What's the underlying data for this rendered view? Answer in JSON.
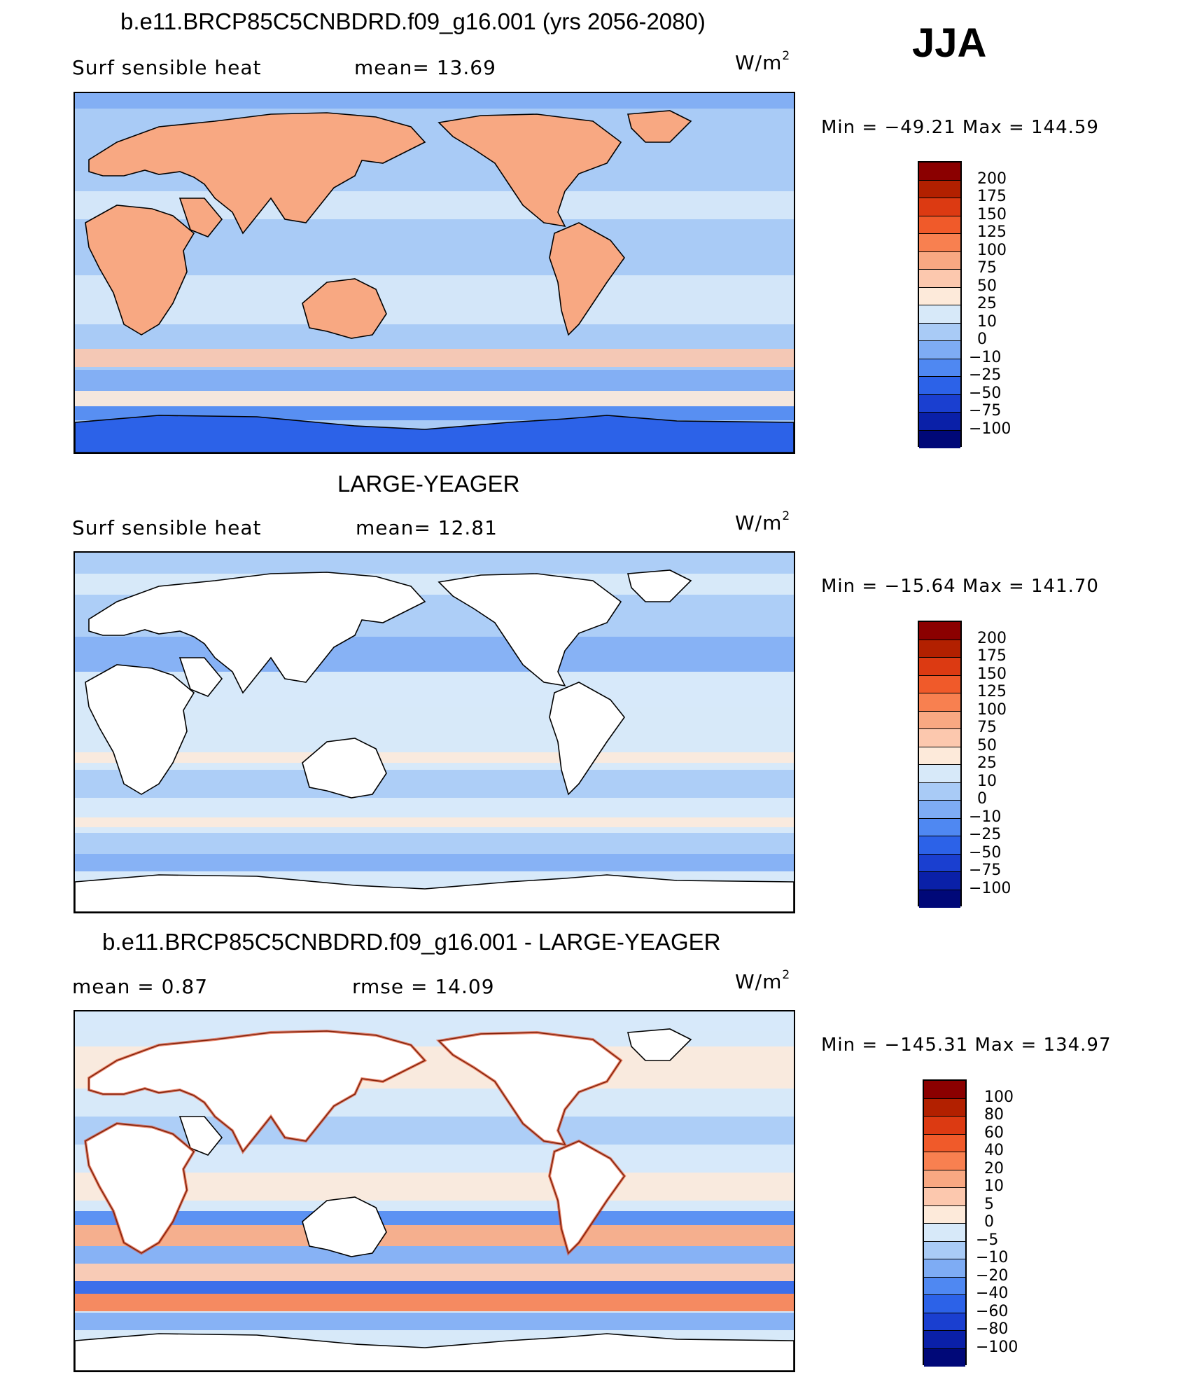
{
  "season": "JJA",
  "panels": [
    {
      "title": "b.e11.BRCP85C5CNBDRD.f09_g16.001 (yrs 2056-2080)",
      "left_label": "Surf  sensible  heat",
      "center_label": "mean=   13.69",
      "units": "W/m",
      "units_sup": "2",
      "minmax": "Min  =  −49.21  Max  =  144.59",
      "colorbar_ticks": [
        "200",
        "175",
        "150",
        "125",
        "100",
        "75",
        "50",
        "25",
        "10",
        "0",
        "−10",
        "−25",
        "−50",
        "−75",
        "−100"
      ],
      "colorbar_colors": [
        "#8b0000",
        "#b22000",
        "#dc3a12",
        "#f05a2a",
        "#f88050",
        "#f8a882",
        "#fcc8ae",
        "#fdeada",
        "#d7e9f9",
        "#a9cbf6",
        "#7eacf4",
        "#4f88f2",
        "#2c62e8",
        "#1a3fd0",
        "#0a20a8",
        "#000878"
      ],
      "theme": "full"
    },
    {
      "title": "LARGE-YEAGER",
      "left_label": "Surf  sensible  heat",
      "center_label": "mean=   12.81",
      "units": "W/m",
      "units_sup": "2",
      "minmax": "Min  =  −15.64  Max  =  141.70",
      "colorbar_ticks": [
        "200",
        "175",
        "150",
        "125",
        "100",
        "75",
        "50",
        "25",
        "10",
        "0",
        "−10",
        "−25",
        "−50",
        "−75",
        "−100"
      ],
      "colorbar_colors": [
        "#8b0000",
        "#b22000",
        "#dc3a12",
        "#f05a2a",
        "#f88050",
        "#f8a882",
        "#fcc8ae",
        "#fdeada",
        "#d7e9f9",
        "#a9cbf6",
        "#7eacf4",
        "#4f88f2",
        "#2c62e8",
        "#1a3fd0",
        "#0a20a8",
        "#000878"
      ],
      "theme": "ocean"
    },
    {
      "title": "b.e11.BRCP85C5CNBDRD.f09_g16.001 - LARGE-YEAGER",
      "left_label": "mean  =     0.87",
      "center_label": "rmse  =    14.09",
      "units": "W/m",
      "units_sup": "2",
      "minmax": "Min  =  −145.31  Max  =  134.97",
      "colorbar_ticks": [
        "100",
        "80",
        "60",
        "40",
        "20",
        "10",
        "5",
        "0",
        "−5",
        "−10",
        "−20",
        "−40",
        "−60",
        "−80",
        "−100"
      ],
      "colorbar_colors": [
        "#8b0000",
        "#b22000",
        "#dc3a12",
        "#f05a2a",
        "#f88050",
        "#f8a882",
        "#fcc8ae",
        "#fdeada",
        "#d7e9f9",
        "#a9cbf6",
        "#7eacf4",
        "#4f88f2",
        "#2c62e8",
        "#1a3fd0",
        "#0a20a8",
        "#000878"
      ],
      "theme": "diff"
    }
  ]
}
